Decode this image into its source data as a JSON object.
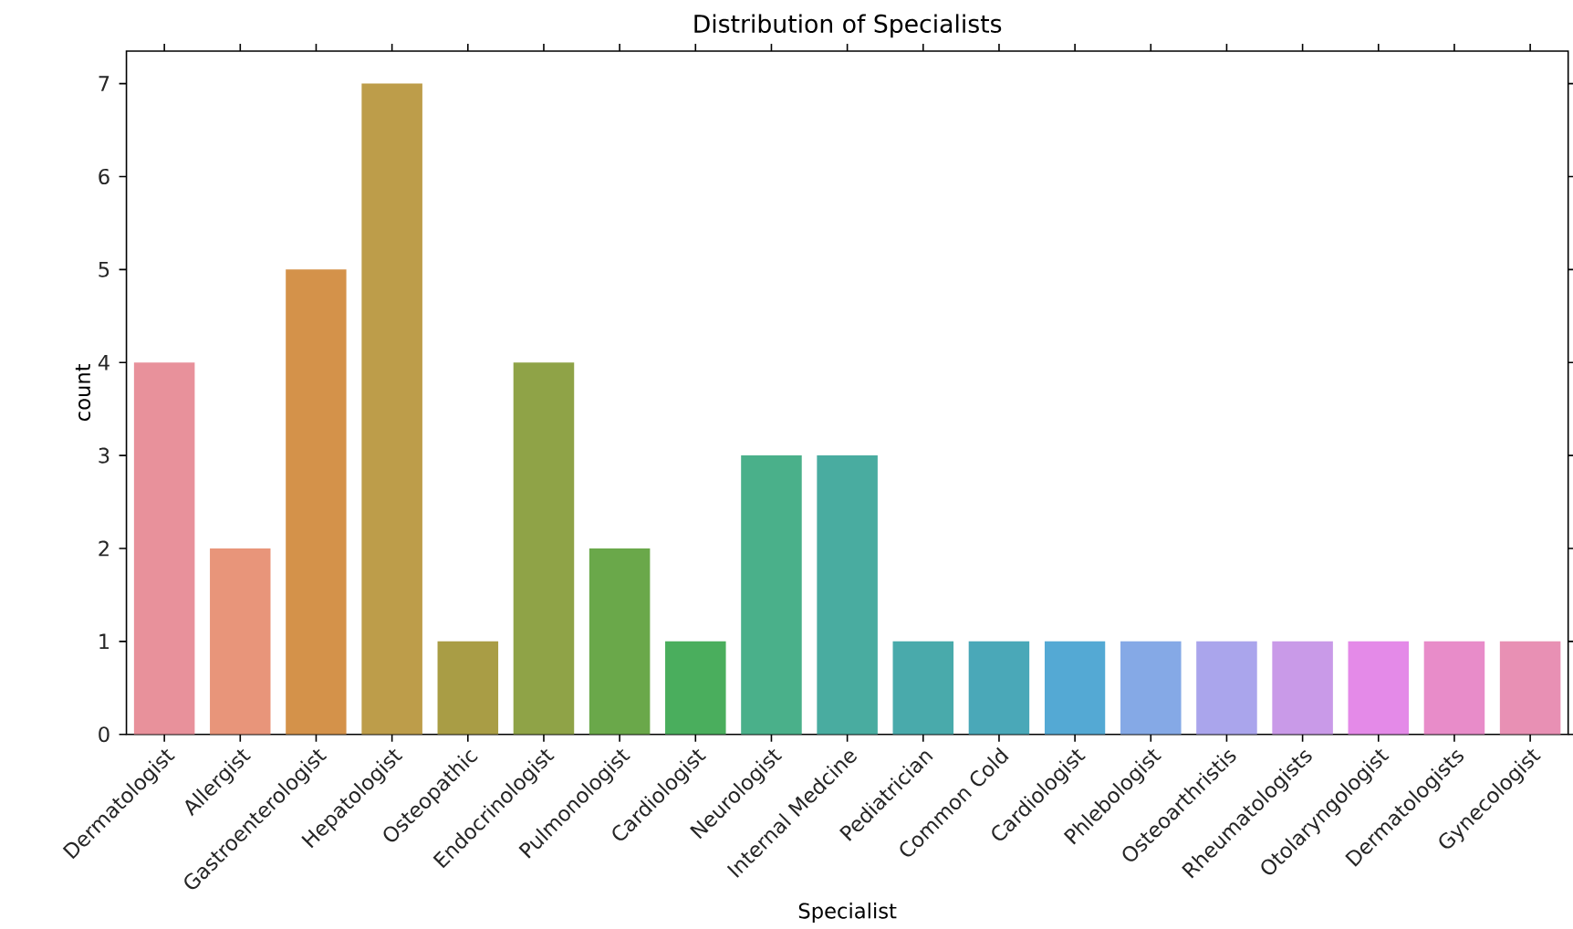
{
  "chart_data": {
    "type": "bar",
    "title": "Distribution of Specialists",
    "xlabel": "Specialist",
    "ylabel": "count",
    "categories": [
      "Dermatologist",
      "Allergist",
      "Gastroenterologist",
      "Hepatologist",
      "Osteopathic",
      "Endocrinologist",
      "Pulmonologist",
      "Cardiologist",
      "Neurologist",
      "Internal Medcine",
      "Pediatrician",
      "Common Cold",
      "Cardiologist",
      "Phlebologist",
      "Osteoarthristis",
      "Rheumatologists",
      "Otolaryngologist",
      "Dermatologists",
      "Gynecologist"
    ],
    "values": [
      4,
      2,
      5,
      7,
      1,
      4,
      2,
      1,
      3,
      3,
      1,
      1,
      1,
      1,
      1,
      1,
      1,
      1,
      1
    ],
    "colors": [
      "#e8919b",
      "#e8957a",
      "#d4924a",
      "#bd9d4a",
      "#a99d45",
      "#8fa347",
      "#6aa84a",
      "#4aae5d",
      "#4ab08a",
      "#49aca0",
      "#49aaab",
      "#4aa8b8",
      "#54a9d4",
      "#85a9e6",
      "#aaa5ec",
      "#c99ae8",
      "#e48ae8",
      "#e88cc9",
      "#e890b4"
    ],
    "ylim": [
      0,
      7.35
    ],
    "yticks": [
      0,
      1,
      2,
      3,
      4,
      5,
      6,
      7
    ]
  }
}
